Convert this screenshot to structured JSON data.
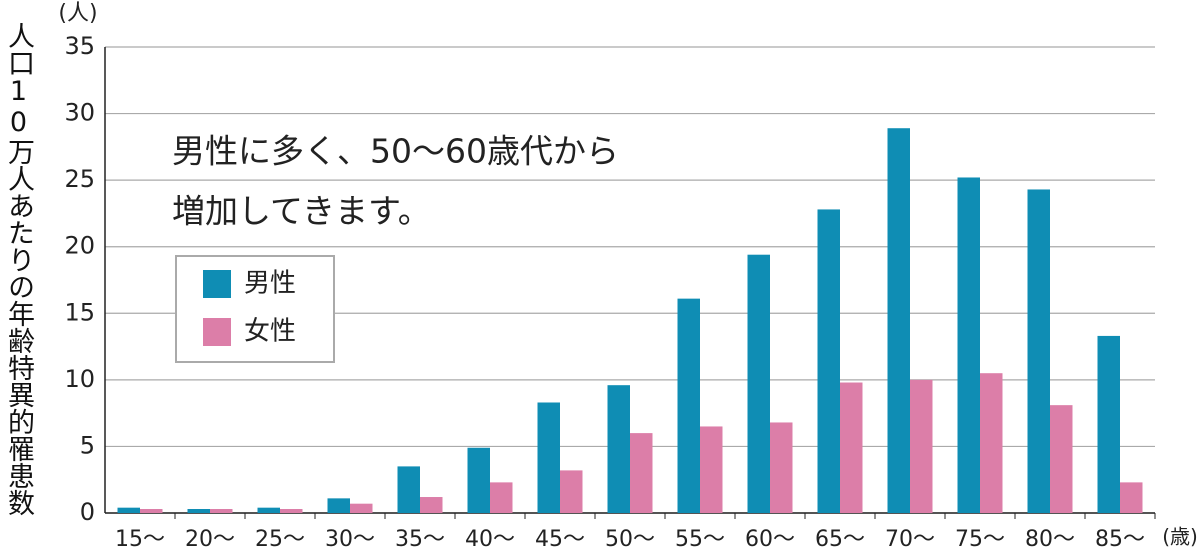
{
  "chart_data": {
    "type": "bar",
    "y_label": "人口10万人あたりの年齢特異的罹患数",
    "y_unit": "(人)",
    "x_unit": "(歳)",
    "annotation": [
      "男性に多く、50〜60歳代から",
      "増加してきます。"
    ],
    "categories": [
      "15〜",
      "20〜",
      "25〜",
      "30〜",
      "35〜",
      "40〜",
      "45〜",
      "50〜",
      "55〜",
      "60〜",
      "65〜",
      "70〜",
      "75〜",
      "80〜",
      "85〜"
    ],
    "series": [
      {
        "name": "男性",
        "color": "#0f8db4",
        "values": [
          0.4,
          0.3,
          0.4,
          1.1,
          3.5,
          4.9,
          8.3,
          9.6,
          16.1,
          19.4,
          22.8,
          28.9,
          25.2,
          24.3,
          13.3
        ]
      },
      {
        "name": "女性",
        "color": "#dc7ea8",
        "values": [
          0.3,
          0.3,
          0.3,
          0.7,
          1.2,
          2.3,
          3.2,
          6.0,
          6.5,
          6.8,
          9.8,
          10.0,
          10.5,
          8.1,
          2.3
        ]
      }
    ],
    "ylim": [
      0,
      35
    ],
    "yticks": [
      0,
      5,
      10,
      15,
      20,
      25,
      30,
      35
    ],
    "grid": true,
    "legend": "upper left"
  }
}
